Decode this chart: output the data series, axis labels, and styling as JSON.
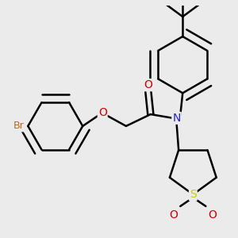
{
  "bg_color": "#ebebeb",
  "bond_color": "#000000",
  "bond_width": 1.8,
  "atom_colors": {
    "Br": "#cc6600",
    "O": "#cc0000",
    "N": "#2222cc",
    "S": "#cccc00",
    "C": "#000000"
  },
  "font_size_atom": 10,
  "font_size_br": 9
}
